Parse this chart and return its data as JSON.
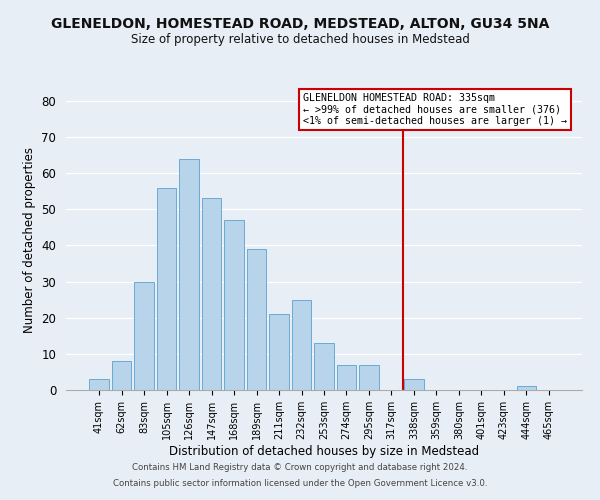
{
  "title": "GLENELDON, HOMESTEAD ROAD, MEDSTEAD, ALTON, GU34 5NA",
  "subtitle": "Size of property relative to detached houses in Medstead",
  "xlabel": "Distribution of detached houses by size in Medstead",
  "ylabel": "Number of detached properties",
  "bin_labels": [
    "41sqm",
    "62sqm",
    "83sqm",
    "105sqm",
    "126sqm",
    "147sqm",
    "168sqm",
    "189sqm",
    "211sqm",
    "232sqm",
    "253sqm",
    "274sqm",
    "295sqm",
    "317sqm",
    "338sqm",
    "359sqm",
    "380sqm",
    "401sqm",
    "423sqm",
    "444sqm",
    "465sqm"
  ],
  "bar_heights": [
    3,
    8,
    30,
    56,
    64,
    53,
    47,
    39,
    21,
    25,
    13,
    7,
    7,
    0,
    3,
    0,
    0,
    0,
    0,
    1,
    0
  ],
  "bar_color": "#b8d4ea",
  "bar_edge_color": "#6aaad4",
  "ylim": [
    0,
    83
  ],
  "yticks": [
    0,
    10,
    20,
    30,
    40,
    50,
    60,
    70,
    80
  ],
  "vertical_line_color": "#cc0000",
  "legend_title": "GLENELDON HOMESTEAD ROAD: 335sqm",
  "legend_line1": "← >99% of detached houses are smaller (376)",
  "legend_line2": "<1% of semi-detached houses are larger (1) →",
  "footer1": "Contains HM Land Registry data © Crown copyright and database right 2024.",
  "footer2": "Contains public sector information licensed under the Open Government Licence v3.0.",
  "bg_color": "#e8eef5",
  "plot_bg_color": "#e8eef5"
}
